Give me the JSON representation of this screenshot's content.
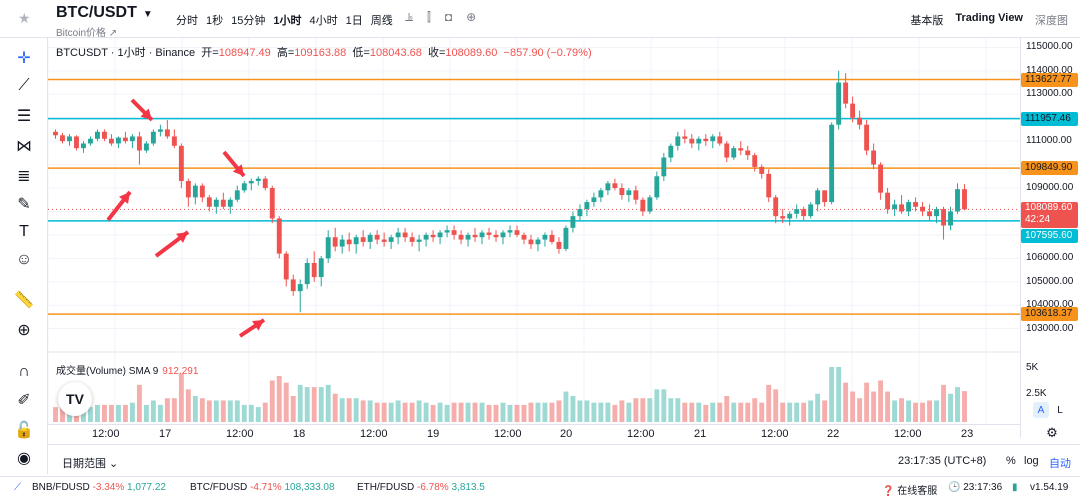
{
  "header": {
    "symbol": "BTC/USDT",
    "subtitle": "Bitcoin价格 ↗",
    "intervals": [
      "分时",
      "1秒",
      "15分钟",
      "1小时",
      "4小时",
      "1日",
      "周线"
    ],
    "active_interval": "1小时",
    "views": {
      "basic": "基本版",
      "tradingview": "Trading View",
      "depth": "深度图"
    }
  },
  "legend": {
    "name": "BTCUSDT · 1小时 · Binance",
    "open_label": "开=",
    "open": "108947.49",
    "high_label": "高=",
    "high": "109163.88",
    "low_label": "低=",
    "low": "108043.68",
    "close_label": "收=",
    "close": "108089.60",
    "change": "−857.90 (−0.79%)"
  },
  "volume_legend": {
    "label": "成交量(Volume) SMA 9",
    "value": "912.291"
  },
  "price_axis": {
    "ticks": [
      "115000.00",
      "114000.00",
      "113000.00",
      "111000.00",
      "109000.00",
      "106000.00",
      "105000.00",
      "104000.00",
      "103000.00"
    ],
    "tags": {
      "t1": "113627.77",
      "t2": "111957.46",
      "t3": "109849.90",
      "current": "108089.60",
      "countdown": "42:24",
      "t4": "107595.60",
      "t5": "103618.37"
    },
    "vol_ticks": [
      "5K",
      "2.5K"
    ],
    "a_label": "A",
    "l_label": "L"
  },
  "time_axis": [
    "12:00",
    "17",
    "12:00",
    "18",
    "12:00",
    "19",
    "12:00",
    "20",
    "12:00",
    "21",
    "12:00",
    "22",
    "12:00",
    "23"
  ],
  "bottom": {
    "range": "日期范围",
    "clock": "23:17:35 (UTC+8)",
    "pct": "%",
    "log": "log",
    "auto": "自动"
  },
  "statusbar": {
    "items": [
      {
        "pair": "BNB/FDUSD",
        "chg": "-3.34%",
        "price": "1,077.22"
      },
      {
        "pair": "BTC/FDUSD",
        "chg": "-4.71%",
        "price": "108,333.08"
      },
      {
        "pair": "ETH/FDUSD",
        "chg": "-6.78%",
        "price": "3,813.5"
      }
    ],
    "support": "在线客服",
    "time": "23:17:36",
    "version": "v1.54.19"
  },
  "colors": {
    "up": "#26a69a",
    "down": "#ef5350",
    "orange": "#f7931a",
    "cyan": "#00bcd4",
    "accent": "#2962ff"
  },
  "chart_data": {
    "type": "candlestick",
    "symbol": "BTCUSDT",
    "interval": "1h",
    "y_range": [
      102600,
      115400
    ],
    "x_labels": [
      "12:00",
      "17",
      "12:00",
      "18",
      "12:00",
      "19",
      "12:00",
      "20",
      "12:00",
      "21",
      "12:00",
      "22",
      "12:00",
      "23"
    ],
    "horizontal_lines": [
      113627.77,
      111957.46,
      109849.9,
      107595.6,
      103618.37
    ],
    "current_price": 108089.6,
    "candles_ohlc": [
      [
        111400,
        111500,
        111100,
        111250
      ],
      [
        111250,
        111350,
        110900,
        111000
      ],
      [
        111000,
        111300,
        110800,
        111200
      ],
      [
        111200,
        111250,
        110600,
        110700
      ],
      [
        110700,
        111000,
        110500,
        110900
      ],
      [
        110900,
        111200,
        110800,
        111100
      ],
      [
        111100,
        111500,
        111000,
        111400
      ],
      [
        111400,
        111500,
        111000,
        111100
      ],
      [
        111100,
        111300,
        110800,
        110900
      ],
      [
        110900,
        111200,
        110700,
        111150
      ],
      [
        111150,
        111400,
        110900,
        111000
      ],
      [
        111000,
        111300,
        110700,
        111200
      ],
      [
        111200,
        111400,
        110000,
        110600
      ],
      [
        110600,
        111000,
        110500,
        110900
      ],
      [
        110900,
        111500,
        110800,
        111400
      ],
      [
        111400,
        111700,
        111200,
        111500
      ],
      [
        111500,
        111900,
        111100,
        111200
      ],
      [
        111200,
        111500,
        110700,
        110800
      ],
      [
        110800,
        110900,
        109000,
        109300
      ],
      [
        109300,
        109400,
        108200,
        108600
      ],
      [
        108600,
        109200,
        108300,
        109100
      ],
      [
        109100,
        109200,
        108400,
        108600
      ],
      [
        108600,
        108700,
        108000,
        108200
      ],
      [
        108200,
        108600,
        107900,
        108500
      ],
      [
        108500,
        108800,
        108100,
        108200
      ],
      [
        108200,
        108600,
        107900,
        108500
      ],
      [
        108500,
        109100,
        108400,
        108900
      ],
      [
        108900,
        109300,
        108800,
        109200
      ],
      [
        109200,
        109400,
        108900,
        109300
      ],
      [
        109300,
        109500,
        109100,
        109400
      ],
      [
        109400,
        109500,
        108900,
        109000
      ],
      [
        109000,
        109100,
        107500,
        107700
      ],
      [
        107700,
        107800,
        106000,
        106200
      ],
      [
        106200,
        106300,
        104800,
        105100
      ],
      [
        105100,
        105300,
        104400,
        104600
      ],
      [
        104600,
        105100,
        103700,
        104900
      ],
      [
        104900,
        106000,
        104700,
        105800
      ],
      [
        105800,
        106300,
        105000,
        105200
      ],
      [
        105200,
        106100,
        104800,
        106000
      ],
      [
        106000,
        107200,
        105800,
        106900
      ],
      [
        106900,
        107300,
        106300,
        106500
      ],
      [
        106500,
        107000,
        106200,
        106800
      ],
      [
        106800,
        107100,
        106300,
        106600
      ],
      [
        106600,
        107000,
        106200,
        106900
      ],
      [
        106900,
        107200,
        106500,
        106700
      ],
      [
        106700,
        107100,
        106400,
        107000
      ],
      [
        107000,
        107200,
        106600,
        106800
      ],
      [
        106800,
        107100,
        106500,
        106700
      ],
      [
        106700,
        107000,
        106400,
        106900
      ],
      [
        106900,
        107300,
        106600,
        107100
      ],
      [
        107100,
        107300,
        106700,
        106900
      ],
      [
        106900,
        107100,
        106500,
        106700
      ],
      [
        106700,
        107000,
        106300,
        106800
      ],
      [
        106800,
        107100,
        106500,
        107000
      ],
      [
        107000,
        107200,
        106700,
        106900
      ],
      [
        106900,
        107200,
        106600,
        107100
      ],
      [
        107100,
        107400,
        106900,
        107200
      ],
      [
        107200,
        107400,
        106800,
        107000
      ],
      [
        107000,
        107200,
        106600,
        106800
      ],
      [
        106800,
        107100,
        106500,
        107000
      ],
      [
        107000,
        107300,
        106700,
        106900
      ],
      [
        106900,
        107200,
        106600,
        107100
      ],
      [
        107100,
        107300,
        106800,
        107000
      ],
      [
        107000,
        107200,
        106700,
        106900
      ],
      [
        106900,
        107200,
        106600,
        107100
      ],
      [
        107100,
        107400,
        106900,
        107200
      ],
      [
        107200,
        107400,
        106900,
        107000
      ],
      [
        107000,
        107100,
        106600,
        106800
      ],
      [
        106800,
        107000,
        106400,
        106600
      ],
      [
        106600,
        106900,
        106300,
        106800
      ],
      [
        106800,
        107100,
        106500,
        107000
      ],
      [
        107000,
        107200,
        106600,
        106700
      ],
      [
        106700,
        106900,
        106200,
        106400
      ],
      [
        106400,
        107400,
        106300,
        107300
      ],
      [
        107300,
        108000,
        107100,
        107800
      ],
      [
        107800,
        108300,
        107600,
        108100
      ],
      [
        108100,
        108500,
        107800,
        108400
      ],
      [
        108400,
        108800,
        108200,
        108600
      ],
      [
        108600,
        109000,
        108400,
        108900
      ],
      [
        108900,
        109300,
        108700,
        109200
      ],
      [
        109200,
        109400,
        108900,
        109000
      ],
      [
        109000,
        109200,
        108500,
        108700
      ],
      [
        108700,
        109000,
        108400,
        108900
      ],
      [
        108900,
        109100,
        108300,
        108500
      ],
      [
        108500,
        108600,
        107800,
        108000
      ],
      [
        108000,
        108700,
        107900,
        108600
      ],
      [
        108600,
        109700,
        108500,
        109500
      ],
      [
        109500,
        110500,
        109300,
        110300
      ],
      [
        110300,
        110900,
        110100,
        110800
      ],
      [
        110800,
        111400,
        110600,
        111200
      ],
      [
        111200,
        111500,
        110900,
        111100
      ],
      [
        111100,
        111300,
        110700,
        110900
      ],
      [
        110900,
        111200,
        110600,
        111100
      ],
      [
        111100,
        111300,
        110800,
        111000
      ],
      [
        111000,
        111300,
        110700,
        111200
      ],
      [
        111200,
        111400,
        110800,
        110900
      ],
      [
        110900,
        111000,
        110100,
        110300
      ],
      [
        110300,
        110800,
        110200,
        110700
      ],
      [
        110700,
        111000,
        110400,
        110600
      ],
      [
        110600,
        110800,
        110200,
        110400
      ],
      [
        110400,
        110500,
        109700,
        109900
      ],
      [
        109900,
        110000,
        109400,
        109600
      ],
      [
        109600,
        109800,
        108400,
        108600
      ],
      [
        108600,
        108700,
        107500,
        107800
      ],
      [
        107800,
        108100,
        107500,
        107700
      ],
      [
        107700,
        108000,
        107400,
        107900
      ],
      [
        107900,
        108300,
        107700,
        108100
      ],
      [
        108100,
        108200,
        107600,
        107800
      ],
      [
        107800,
        108400,
        107700,
        108300
      ],
      [
        108300,
        109000,
        108000,
        108900
      ],
      [
        108900,
        108900,
        108200,
        108400
      ],
      [
        108400,
        111800,
        108300,
        111700
      ],
      [
        111700,
        114000,
        111500,
        113500
      ],
      [
        113500,
        113900,
        112400,
        112600
      ],
      [
        112600,
        112900,
        111800,
        112000
      ],
      [
        112000,
        112300,
        111500,
        111700
      ],
      [
        111700,
        111900,
        110400,
        110600
      ],
      [
        110600,
        110900,
        109800,
        110000
      ],
      [
        110000,
        110100,
        108500,
        108800
      ],
      [
        108800,
        109000,
        107900,
        108100
      ],
      [
        108100,
        108500,
        107800,
        108300
      ],
      [
        108300,
        108700,
        107900,
        108000
      ],
      [
        108000,
        108500,
        107800,
        108400
      ],
      [
        108400,
        108600,
        108000,
        108200
      ],
      [
        108200,
        108400,
        107800,
        108000
      ],
      [
        108000,
        108300,
        107600,
        107800
      ],
      [
        107800,
        108200,
        107500,
        108100
      ],
      [
        108100,
        108200,
        106800,
        107400
      ],
      [
        107400,
        108200,
        107200,
        108000
      ],
      [
        108000,
        109200,
        107900,
        108950
      ],
      [
        108950,
        109164,
        108044,
        108090
      ]
    ],
    "volume_axis_ticks": [
      "5K",
      "2.5K"
    ],
    "volume_sma_label": "成交量(Volume) SMA 9",
    "volume_sma_value": 912.291
  }
}
